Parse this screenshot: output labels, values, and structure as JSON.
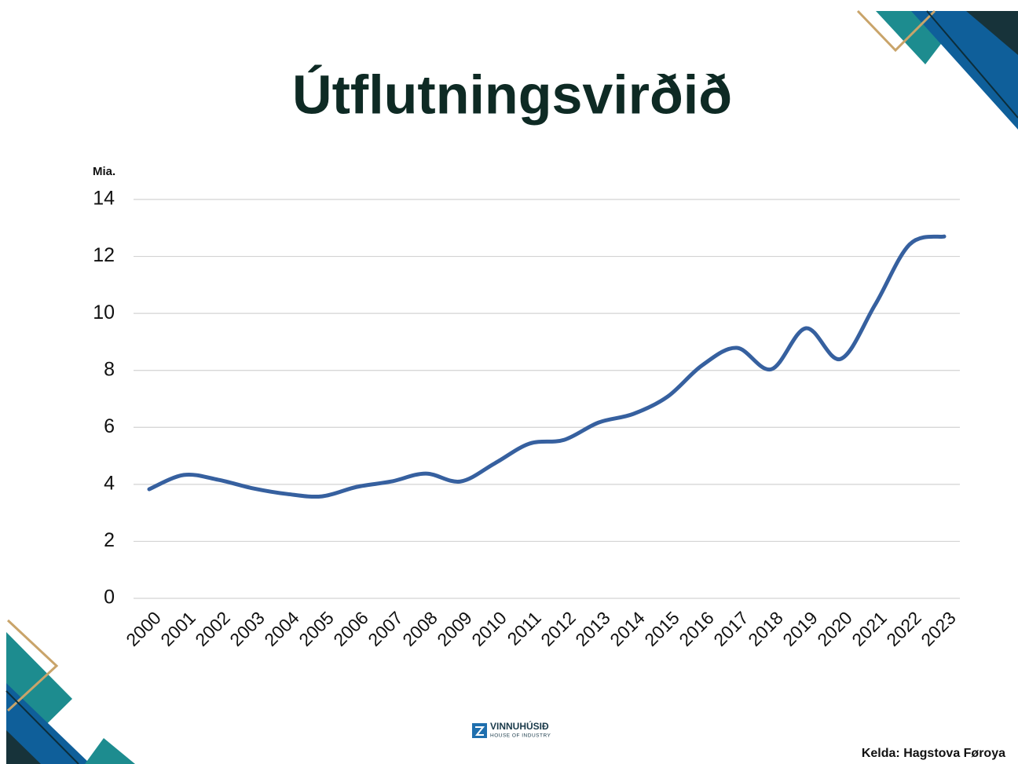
{
  "chart_data": {
    "type": "line",
    "title": "Útflutningsvirðið",
    "y_label": "Mia.",
    "categories": [
      "2000",
      "2001",
      "2002",
      "2003",
      "2004",
      "2005",
      "2006",
      "2007",
      "2008",
      "2009",
      "2010",
      "2011",
      "2012",
      "2013",
      "2014",
      "2015",
      "2016",
      "2017",
      "2018",
      "2019",
      "2020",
      "2021",
      "2022",
      "2023"
    ],
    "values": [
      3.83,
      4.33,
      4.16,
      3.86,
      3.66,
      3.58,
      3.91,
      4.1,
      4.38,
      4.1,
      4.74,
      5.43,
      5.56,
      6.17,
      6.47,
      7.08,
      8.18,
      8.79,
      8.04,
      9.48,
      8.4,
      10.3,
      12.42,
      12.7
    ],
    "color": "#36609f",
    "smooth": true,
    "ylim": [
      0,
      14
    ],
    "yticks": [
      0,
      2,
      4,
      6,
      8,
      10,
      12,
      14
    ],
    "grid": true
  },
  "source": "Kelda: Hagstova Føroya",
  "logo": {
    "name": "VINNUHÚSIÐ",
    "tagline": "HOUSE OF INDUSTRY"
  }
}
